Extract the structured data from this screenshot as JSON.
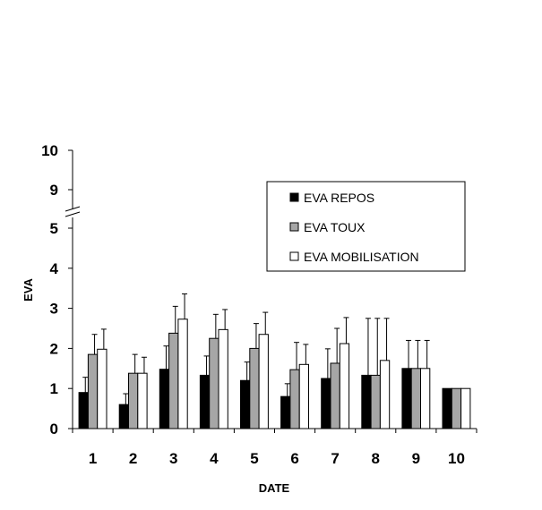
{
  "chart_data": {
    "type": "bar",
    "xlabel": "DATE",
    "ylabel": "EVA",
    "categories": [
      "1",
      "2",
      "3",
      "4",
      "5",
      "6",
      "7",
      "8",
      "9",
      "10"
    ],
    "y_ticks_lower": [
      "0",
      "1",
      "2",
      "3",
      "4",
      "5"
    ],
    "y_ticks_upper": [
      "9",
      "10"
    ],
    "ylim": [
      0,
      10
    ],
    "axis_break": [
      5.5,
      8.5
    ],
    "legend_position": "upper-right",
    "series": [
      {
        "name": "EVA REPOS",
        "color": "#000000",
        "values": [
          0.9,
          0.6,
          1.48,
          1.33,
          1.2,
          0.8,
          1.25,
          1.33,
          1.5,
          1.0
        ],
        "error": [
          0.38,
          0.27,
          0.58,
          0.48,
          0.46,
          0.32,
          0.74,
          1.42,
          0.7,
          0
        ]
      },
      {
        "name": "EVA TOUX",
        "color": "#a6a6a6",
        "values": [
          1.85,
          1.38,
          2.38,
          2.25,
          2.0,
          1.47,
          1.63,
          1.33,
          1.5,
          1.0
        ],
        "error": [
          0.5,
          0.47,
          0.67,
          0.6,
          0.62,
          0.68,
          0.87,
          1.42,
          0.7,
          0
        ]
      },
      {
        "name": "EVA MOBILISATION",
        "color": "#ffffff",
        "values": [
          1.98,
          1.38,
          2.73,
          2.47,
          2.35,
          1.6,
          2.12,
          1.7,
          1.5,
          1.0
        ],
        "error": [
          0.5,
          0.4,
          0.63,
          0.5,
          0.55,
          0.5,
          0.65,
          1.05,
          0.7,
          0
        ]
      }
    ]
  }
}
